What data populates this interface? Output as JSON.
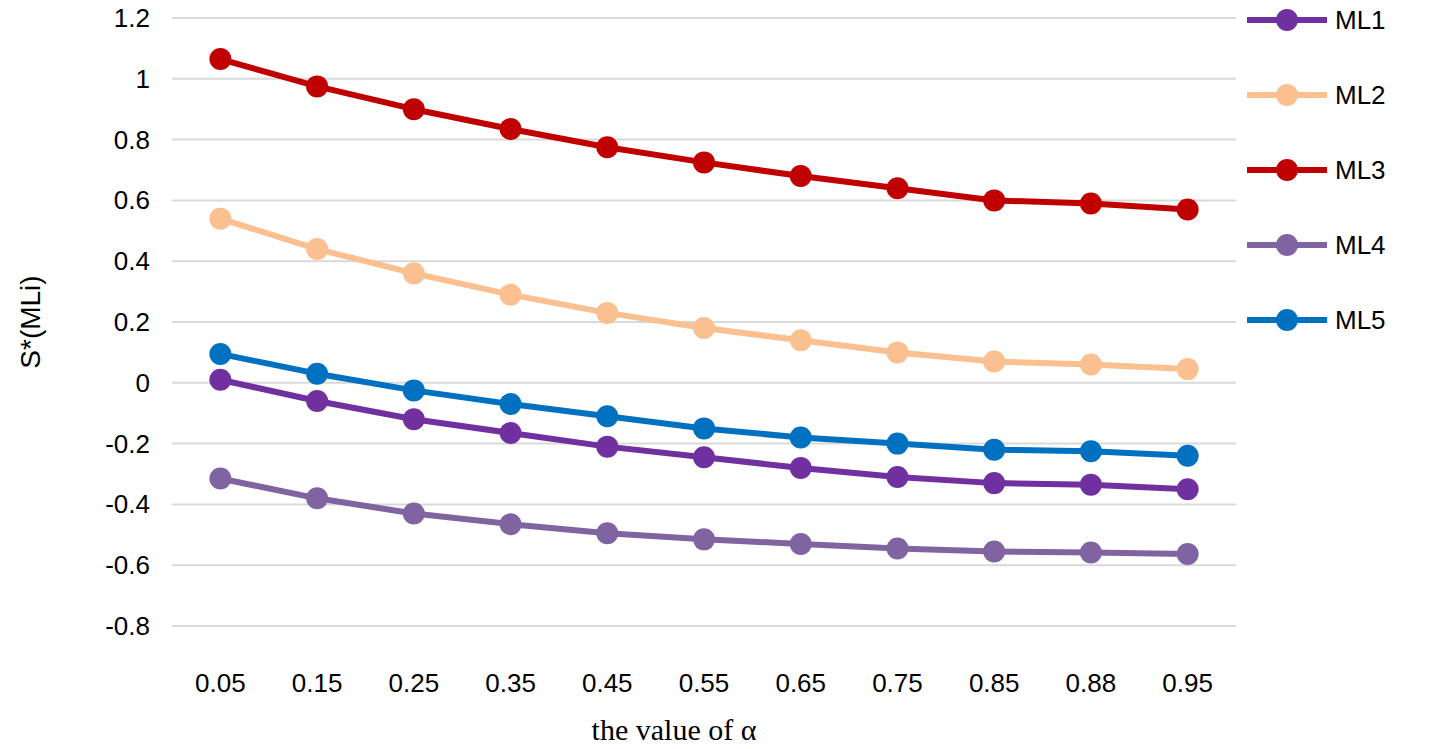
{
  "chart_data": {
    "type": "line",
    "x_label": "the value of α",
    "y_label": "S*(MLi)",
    "categories": [
      "0.05",
      "0.15",
      "0.25",
      "0.35",
      "0.45",
      "0.55",
      "0.65",
      "0.75",
      "0.85",
      "0.88",
      "0.95"
    ],
    "series": [
      {
        "name": "ML1",
        "color": "#7030a0",
        "values": [
          0.01,
          -0.06,
          -0.12,
          -0.165,
          -0.21,
          -0.245,
          -0.28,
          -0.31,
          -0.33,
          -0.335,
          -0.35
        ]
      },
      {
        "name": "ML2",
        "color": "#fac090",
        "values": [
          0.54,
          0.44,
          0.36,
          0.29,
          0.23,
          0.18,
          0.14,
          0.1,
          0.07,
          0.06,
          0.045
        ]
      },
      {
        "name": "ML3",
        "color": "#c00000",
        "values": [
          1.065,
          0.975,
          0.9,
          0.835,
          0.775,
          0.725,
          0.68,
          0.64,
          0.6,
          0.59,
          0.57
        ]
      },
      {
        "name": "ML4",
        "color": "#8064a2",
        "values": [
          -0.315,
          -0.38,
          -0.43,
          -0.465,
          -0.495,
          -0.515,
          -0.53,
          -0.545,
          -0.555,
          -0.558,
          -0.563
        ]
      },
      {
        "name": "ML5",
        "color": "#0070c0",
        "values": [
          0.095,
          0.03,
          -0.025,
          -0.07,
          -0.11,
          -0.15,
          -0.18,
          -0.2,
          -0.22,
          -0.225,
          -0.24
        ]
      }
    ],
    "ylim": [
      -0.8,
      1.2
    ],
    "yticks": [
      -0.8,
      -0.6,
      -0.4,
      -0.2,
      0,
      0.2,
      0.4,
      0.6,
      0.8,
      1,
      1.2
    ],
    "grid": true,
    "legend": "right",
    "marker": "circle"
  }
}
